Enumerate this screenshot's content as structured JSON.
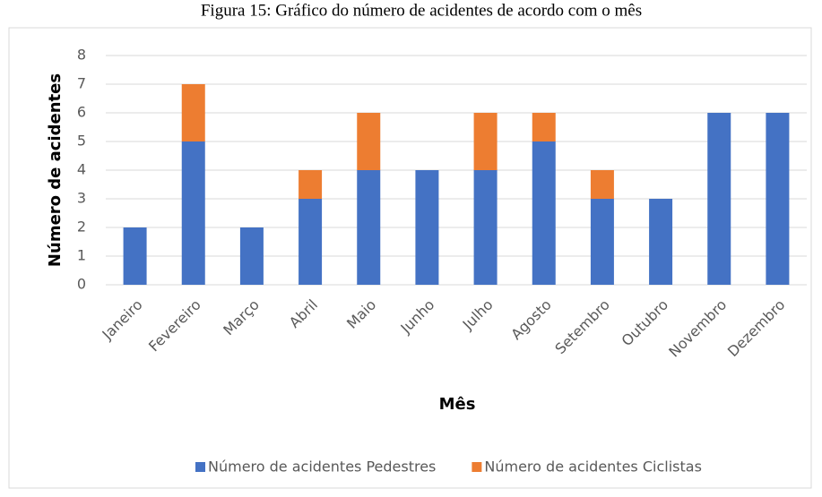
{
  "chart_data": {
    "type": "stacked_bar",
    "title": "Figura 15: Gráfico do número de acidentes de acordo com o mês",
    "x_label": "Mês",
    "y_label": "Número de acidentes",
    "categories": [
      "Janeiro",
      "Fevereiro",
      "Março",
      "Abril",
      "Maio",
      "Junho",
      "Julho",
      "Agosto",
      "Setembro",
      "Outubro",
      "Novembro",
      "Dezembro"
    ],
    "series": [
      {
        "name": "Número de acidentes Pedestres",
        "color": "#4472c4",
        "values": [
          2,
          5,
          2,
          3,
          4,
          4,
          4,
          5,
          3,
          3,
          6,
          6
        ]
      },
      {
        "name": "Número de acidentes Ciclistas",
        "color": "#ed7d31",
        "values": [
          0,
          2,
          0,
          1,
          2,
          0,
          2,
          1,
          1,
          0,
          0,
          0
        ]
      }
    ],
    "ylim": [
      0,
      8
    ],
    "yticks": [
      0,
      1,
      2,
      3,
      4,
      5,
      6,
      7,
      8
    ],
    "grid": true,
    "legend": "bottom"
  }
}
